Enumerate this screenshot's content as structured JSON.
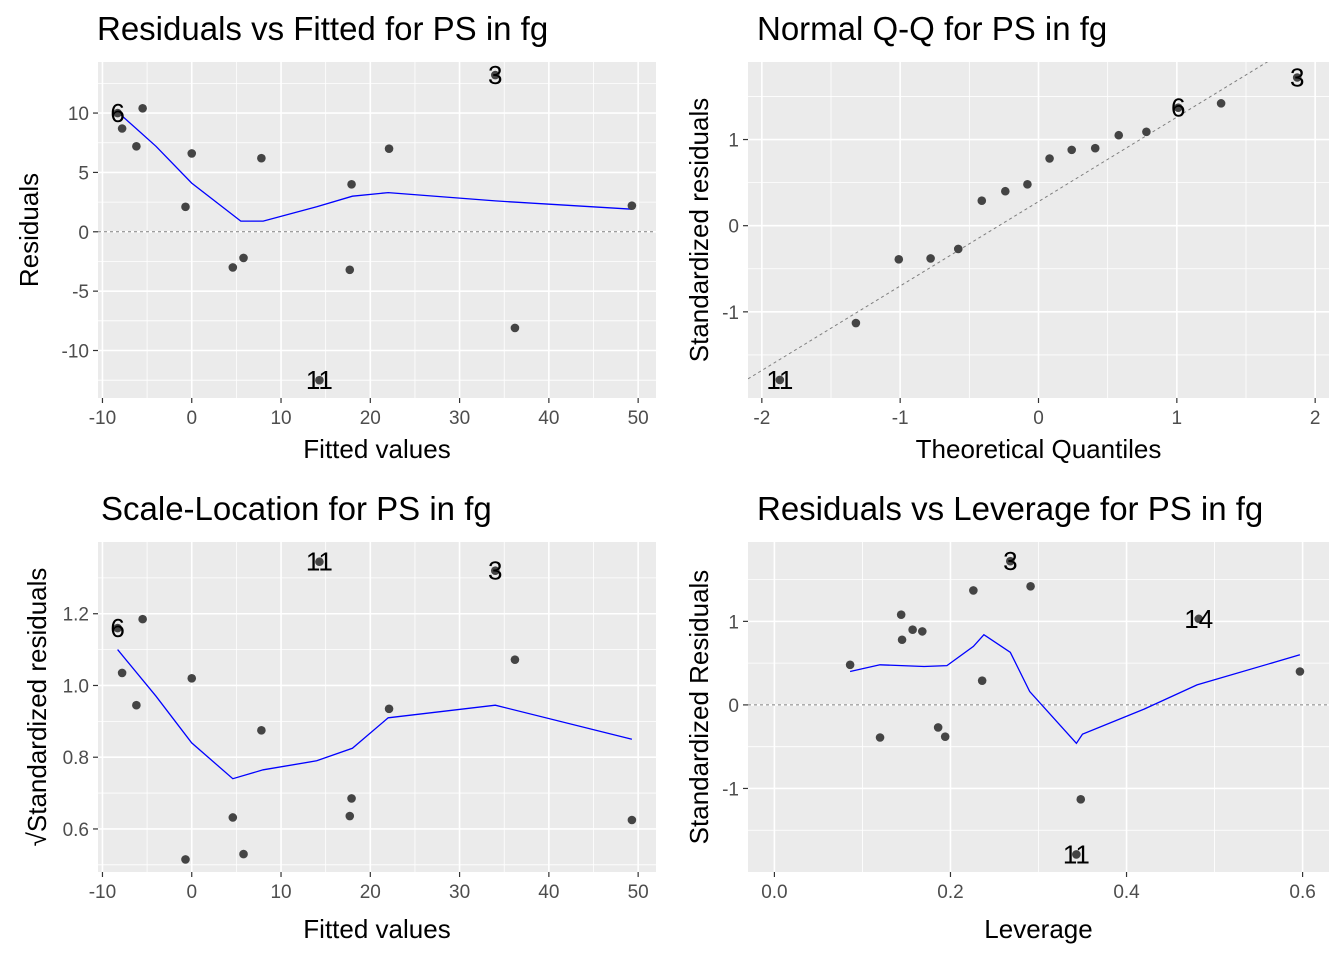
{
  "chart_data": [
    {
      "type": "scatter",
      "title": "Residuals vs Fitted for PS in fg",
      "xlabel": "Fitted values",
      "ylabel": "Residuals",
      "xlim": [
        -10.5,
        52
      ],
      "ylim": [
        -14,
        14.3
      ],
      "xticks": [
        -10,
        0,
        10,
        20,
        30,
        40,
        50
      ],
      "xtick_labels": [
        "-10",
        "0",
        "10",
        "20",
        "30",
        "40",
        "50"
      ],
      "yticks": [
        -10,
        -5,
        0,
        5,
        10
      ],
      "ytick_labels": [
        "-10",
        "-5",
        "0",
        "5",
        "10"
      ],
      "points": [
        {
          "x": -8.3,
          "y": 10.0
        },
        {
          "x": -7.8,
          "y": 8.7
        },
        {
          "x": -6.2,
          "y": 7.2
        },
        {
          "x": -5.5,
          "y": 10.4
        },
        {
          "x": -0.7,
          "y": 2.1
        },
        {
          "x": 0.0,
          "y": 6.6
        },
        {
          "x": 4.6,
          "y": -3.0
        },
        {
          "x": 5.8,
          "y": -2.2
        },
        {
          "x": 7.8,
          "y": 6.2
        },
        {
          "x": 14.3,
          "y": -12.5
        },
        {
          "x": 17.7,
          "y": -3.2
        },
        {
          "x": 17.9,
          "y": 4.0
        },
        {
          "x": 22.1,
          "y": 7.0
        },
        {
          "x": 34.0,
          "y": 13.2
        },
        {
          "x": 36.2,
          "y": -8.1
        },
        {
          "x": 49.3,
          "y": 2.2
        }
      ],
      "smooth": [
        {
          "x": -8.3,
          "y": 10.1
        },
        {
          "x": -4,
          "y": 7.2
        },
        {
          "x": 0,
          "y": 4.1
        },
        {
          "x": 5.5,
          "y": 0.9
        },
        {
          "x": 8,
          "y": 0.9
        },
        {
          "x": 14,
          "y": 2.1
        },
        {
          "x": 18,
          "y": 3.0
        },
        {
          "x": 22,
          "y": 3.3
        },
        {
          "x": 34,
          "y": 2.6
        },
        {
          "x": 49.3,
          "y": 1.9
        }
      ],
      "hline": 0,
      "labels": [
        {
          "text": "6",
          "x": -8.3,
          "y": 10.0
        },
        {
          "text": "11",
          "x": 14.3,
          "y": -12.5
        },
        {
          "text": "3",
          "x": 34.0,
          "y": 13.2
        }
      ]
    },
    {
      "type": "scatter",
      "title": "Normal Q-Q for PS in fg",
      "xlabel": "Theoretical Quantiles",
      "ylabel": "Standardized residuals",
      "xlim": [
        -2.1,
        2.1
      ],
      "ylim": [
        -2.0,
        1.9
      ],
      "xticks": [
        -2,
        -1,
        0,
        1,
        2
      ],
      "xtick_labels": [
        "-2",
        "-1",
        "0",
        "1",
        "2"
      ],
      "yticks": [
        -1,
        0,
        1
      ],
      "ytick_labels": [
        "-1",
        "0",
        "1"
      ],
      "points": [
        {
          "x": -1.87,
          "y": -1.79
        },
        {
          "x": -1.32,
          "y": -1.13
        },
        {
          "x": -1.01,
          "y": -0.39
        },
        {
          "x": -0.78,
          "y": -0.38
        },
        {
          "x": -0.58,
          "y": -0.27
        },
        {
          "x": -0.41,
          "y": 0.29
        },
        {
          "x": -0.24,
          "y": 0.4
        },
        {
          "x": -0.08,
          "y": 0.48
        },
        {
          "x": 0.08,
          "y": 0.78
        },
        {
          "x": 0.24,
          "y": 0.88
        },
        {
          "x": 0.41,
          "y": 0.9
        },
        {
          "x": 0.58,
          "y": 1.05
        },
        {
          "x": 0.78,
          "y": 1.09
        },
        {
          "x": 1.01,
          "y": 1.37
        },
        {
          "x": 1.32,
          "y": 1.42
        },
        {
          "x": 1.87,
          "y": 1.72
        }
      ],
      "refline": {
        "intercept": 0.28,
        "slope": 0.98
      },
      "labels": [
        {
          "text": "11",
          "x": -1.87,
          "y": -1.79
        },
        {
          "text": "6",
          "x": 1.01,
          "y": 1.37
        },
        {
          "text": "3",
          "x": 1.87,
          "y": 1.72
        }
      ]
    },
    {
      "type": "scatter",
      "title": "Scale-Location for PS in fg",
      "xlabel": "Fitted values",
      "ylabel": "√Standardized residuals",
      "xlim": [
        -10.5,
        52
      ],
      "ylim": [
        0.48,
        1.4
      ],
      "xticks": [
        -10,
        0,
        10,
        20,
        30,
        40,
        50
      ],
      "xtick_labels": [
        "-10",
        "0",
        "10",
        "20",
        "30",
        "40",
        "50"
      ],
      "yticks": [
        0.6,
        0.8,
        1.0,
        1.2
      ],
      "ytick_labels": [
        "0.6",
        "0.8",
        "1.0",
        "1.2"
      ],
      "points": [
        {
          "x": -8.3,
          "y": 1.16
        },
        {
          "x": -7.8,
          "y": 1.035
        },
        {
          "x": -6.2,
          "y": 0.945
        },
        {
          "x": -5.5,
          "y": 1.185
        },
        {
          "x": -0.7,
          "y": 0.515
        },
        {
          "x": 0.0,
          "y": 1.02
        },
        {
          "x": 4.6,
          "y": 0.632
        },
        {
          "x": 5.8,
          "y": 0.53
        },
        {
          "x": 7.8,
          "y": 0.875
        },
        {
          "x": 14.3,
          "y": 1.345
        },
        {
          "x": 17.7,
          "y": 0.636
        },
        {
          "x": 17.9,
          "y": 0.685
        },
        {
          "x": 22.1,
          "y": 0.935
        },
        {
          "x": 34.0,
          "y": 1.32
        },
        {
          "x": 36.2,
          "y": 1.072
        },
        {
          "x": 49.3,
          "y": 0.625
        }
      ],
      "smooth": [
        {
          "x": -8.3,
          "y": 1.1
        },
        {
          "x": -4,
          "y": 0.97
        },
        {
          "x": 0,
          "y": 0.84
        },
        {
          "x": 4.6,
          "y": 0.74
        },
        {
          "x": 8,
          "y": 0.765
        },
        {
          "x": 14,
          "y": 0.79
        },
        {
          "x": 18,
          "y": 0.825
        },
        {
          "x": 22,
          "y": 0.91
        },
        {
          "x": 34,
          "y": 0.945
        },
        {
          "x": 49.3,
          "y": 0.85
        }
      ],
      "labels": [
        {
          "text": "6",
          "x": -8.3,
          "y": 1.16
        },
        {
          "text": "11",
          "x": 14.3,
          "y": 1.345
        },
        {
          "text": "3",
          "x": 34.0,
          "y": 1.32
        }
      ]
    },
    {
      "type": "scatter",
      "title": "Residuals vs Leverage for PS in fg",
      "xlabel": "Leverage",
      "ylabel": "Standardized Residuals",
      "xlim": [
        -0.03,
        0.63
      ],
      "ylim": [
        -2.0,
        1.95
      ],
      "xticks": [
        0.0,
        0.2,
        0.4,
        0.6
      ],
      "xtick_labels": [
        "0.0",
        "0.2",
        "0.4",
        "0.6"
      ],
      "yticks": [
        -1,
        0,
        1
      ],
      "ytick_labels": [
        "-1",
        "0",
        "1"
      ],
      "points": [
        {
          "x": 0.086,
          "y": 0.48
        },
        {
          "x": 0.12,
          "y": -0.39
        },
        {
          "x": 0.144,
          "y": 1.08
        },
        {
          "x": 0.145,
          "y": 0.78
        },
        {
          "x": 0.157,
          "y": 0.9
        },
        {
          "x": 0.168,
          "y": 0.88
        },
        {
          "x": 0.186,
          "y": -0.27
        },
        {
          "x": 0.194,
          "y": -0.38
        },
        {
          "x": 0.226,
          "y": 1.37
        },
        {
          "x": 0.236,
          "y": 0.29
        },
        {
          "x": 0.268,
          "y": 1.72
        },
        {
          "x": 0.291,
          "y": 1.42
        },
        {
          "x": 0.343,
          "y": -1.79
        },
        {
          "x": 0.348,
          "y": -1.13
        },
        {
          "x": 0.482,
          "y": 1.03
        },
        {
          "x": 0.597,
          "y": 0.4
        }
      ],
      "smooth": [
        {
          "x": 0.086,
          "y": 0.4
        },
        {
          "x": 0.12,
          "y": 0.48
        },
        {
          "x": 0.17,
          "y": 0.46
        },
        {
          "x": 0.196,
          "y": 0.47
        },
        {
          "x": 0.226,
          "y": 0.7
        },
        {
          "x": 0.238,
          "y": 0.84
        },
        {
          "x": 0.268,
          "y": 0.63
        },
        {
          "x": 0.29,
          "y": 0.16
        },
        {
          "x": 0.343,
          "y": -0.46
        },
        {
          "x": 0.35,
          "y": -0.35
        },
        {
          "x": 0.42,
          "y": -0.05
        },
        {
          "x": 0.48,
          "y": 0.24
        },
        {
          "x": 0.597,
          "y": 0.6
        }
      ],
      "hline": 0,
      "labels": [
        {
          "text": "3",
          "x": 0.268,
          "y": 1.72
        },
        {
          "text": "14",
          "x": 0.482,
          "y": 1.03
        },
        {
          "text": "11",
          "x": 0.343,
          "y": -1.79
        }
      ]
    }
  ]
}
